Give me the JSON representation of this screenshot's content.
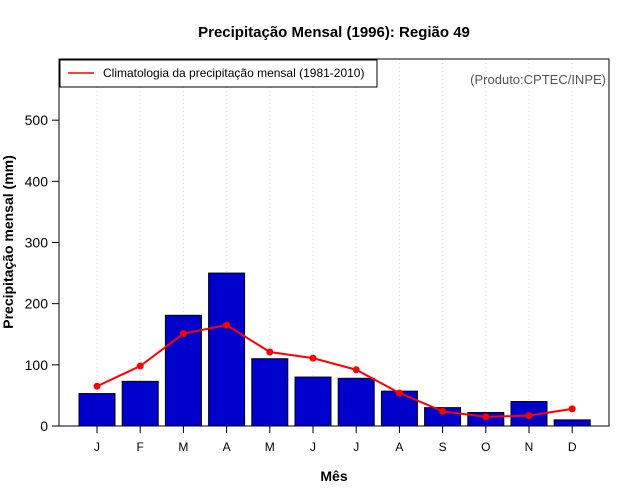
{
  "chart_data": {
    "type": "bar",
    "title": "Precipitação Mensal (1996): Região 49",
    "xlabel": "Mês",
    "ylabel": "Precipitação mensal (mm)",
    "ylim": [
      0,
      600
    ],
    "yticks": [
      0,
      100,
      200,
      300,
      400,
      500
    ],
    "categories": [
      "J",
      "F",
      "M",
      "A",
      "M",
      "J",
      "J",
      "A",
      "S",
      "O",
      "N",
      "D"
    ],
    "series": [
      {
        "name": "Precipitação mensal 1996",
        "type": "bar",
        "color": "#0000CD",
        "values": [
          53,
          73,
          181,
          250,
          110,
          80,
          78,
          57,
          30,
          22,
          40,
          10
        ]
      },
      {
        "name": "Climatologia da precipitação mensal (1981-2010)",
        "type": "line",
        "color": "#FF0000",
        "values": [
          65,
          98,
          151,
          165,
          121,
          111,
          92,
          54,
          24,
          15,
          17,
          28
        ]
      }
    ],
    "legend": {
      "entries": [
        "Climatologia da precipitação mensal (1981-2010)"
      ],
      "position": "top-left"
    },
    "grid": "vertical dotted",
    "credit": "(Produto:CPTEC/INPE)"
  }
}
